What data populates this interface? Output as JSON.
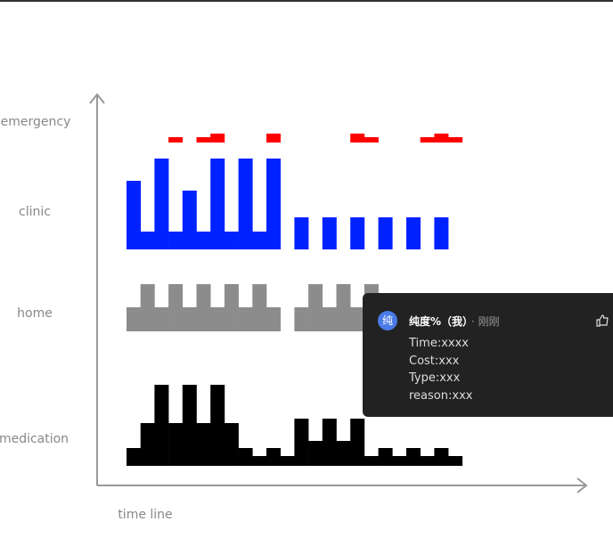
{
  "chart_data": {
    "type": "timeline",
    "x_label": "time line",
    "series": [
      {
        "name": "emergency",
        "color": "#ff0000",
        "values": [
          null,
          null,
          null,
          6,
          null,
          6,
          10,
          null,
          null,
          null,
          10,
          null,
          null,
          null,
          null,
          null,
          10,
          6,
          null,
          null,
          null,
          6,
          10,
          6
        ]
      },
      {
        "name": "clinic",
        "color": "#0022ff",
        "values": [
          77,
          20,
          102,
          20,
          66,
          20,
          102,
          20,
          102,
          20,
          102,
          null,
          36,
          null,
          36,
          null,
          36,
          null,
          36,
          null,
          36,
          null,
          36,
          null
        ]
      },
      {
        "name": "home",
        "color": "#8c8c8c",
        "values": [
          27,
          53,
          27,
          53,
          27,
          53,
          27,
          53,
          27,
          53,
          27,
          null,
          27,
          53,
          27,
          53,
          27,
          53,
          null,
          null,
          null,
          null,
          null,
          null
        ]
      },
      {
        "name": "medication",
        "color": "#000000",
        "values": [
          20,
          48,
          91,
          48,
          91,
          48,
          91,
          48,
          20,
          11,
          20,
          11,
          53,
          28,
          53,
          28,
          53,
          11,
          20,
          11,
          20,
          11,
          20,
          11
        ]
      }
    ]
  },
  "tooltip": {
    "avatar": "纯",
    "user": "纯度%（我）",
    "time": "· 刚刚",
    "lines": [
      "Time:xxxx",
      "Cost:xxx",
      "Type:xxx",
      "reason:xxx"
    ]
  }
}
